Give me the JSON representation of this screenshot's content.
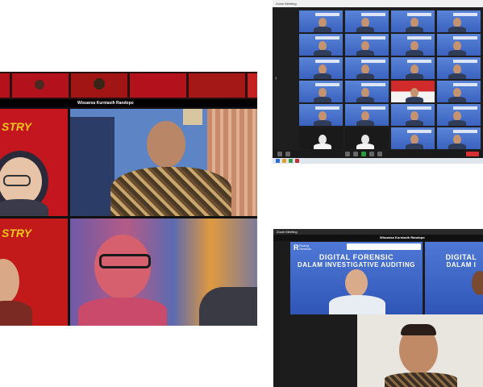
{
  "left_shot": {
    "top_strip_caption": "Wisuarsa Kurniasih Randopo",
    "banner_text": "STRY",
    "banner_text_2": "STRY",
    "tile_labels": [
      "",
      "",
      "",
      ""
    ]
  },
  "top_right_shot": {
    "titlebar_text": "Zoom Meeting"
  },
  "bottom_right_shot": {
    "titlebar_text": "Zoom Meeting",
    "speaker_caption": "Wisuarsa Kurniasih Randopo",
    "logo_text": "Ruang Seminar",
    "slide_title_line1": "DIGITAL FORENSIC",
    "slide_title_line2": "DALAM INVESTIGATIVE AUDITING",
    "slide2_line1": "DIGITAL",
    "slide2_line2": "DALAM I"
  },
  "colors": {
    "zoom_dark": "#1c1c1c",
    "slide_blue": "#3b63c7",
    "banner_red": "#b3121c"
  }
}
